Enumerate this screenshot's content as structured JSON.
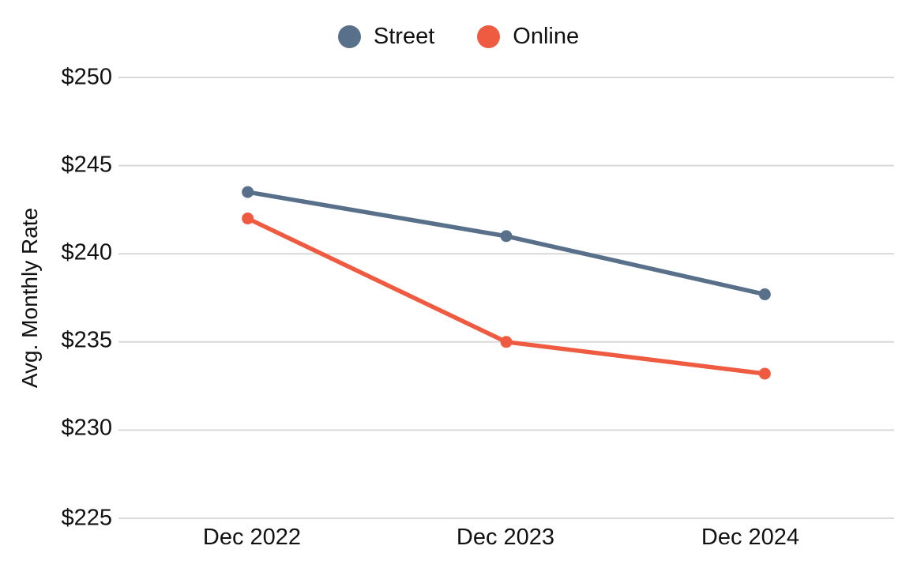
{
  "chart_data": {
    "type": "line",
    "title": "",
    "categories": [
      "Dec 2022",
      "Dec 2023",
      "Dec 2024"
    ],
    "series": [
      {
        "name": "Street",
        "color": "#587089",
        "values": [
          243.5,
          241.0,
          237.7
        ]
      },
      {
        "name": "Online",
        "color": "#ef5b40",
        "values": [
          242.0,
          235.0,
          233.2
        ]
      }
    ],
    "xlabel": "",
    "ylabel": "Avg. Monthly Rate",
    "ylim": [
      225,
      250
    ],
    "ytick_values": [
      250,
      245,
      240,
      235,
      230,
      225
    ],
    "ytick_labels": [
      "$250",
      "$245",
      "$240",
      "$235",
      "$230",
      "$225"
    ],
    "grid": "horizontal",
    "gridline_color": "#d9d9d9",
    "background": "#ffffff",
    "legend_position": "top-center",
    "marker": "circle",
    "line_width": 5.5,
    "marker_radius": 7.5
  }
}
